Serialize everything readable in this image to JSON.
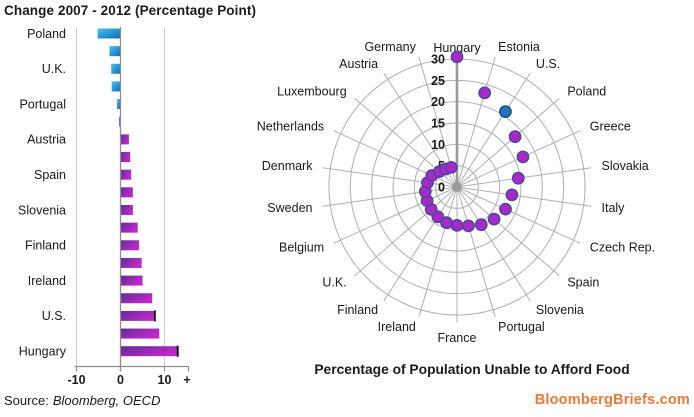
{
  "left_chart": {
    "title": "Change 2007 - 2012 (Percentage Point)",
    "source_label": "Source:",
    "source_value": "Bloomberg, OECD"
  },
  "radar_chart": {
    "title": "Percentage of Population Unable to Afford Food"
  },
  "branding": "BloombergBriefs.com",
  "colors": {
    "branding": "#EE7836",
    "bar_blue_gradient": [
      "#45C2EF",
      "#0C6CB8"
    ],
    "bar_purple_gradient": [
      "#5E2D96",
      "#C328CC"
    ],
    "grid": "#AFAFAF",
    "axis": "#8E8E8E",
    "point": "#A928C8",
    "point_stroke": "#5046A0",
    "highlight_point": "#1F78BE",
    "highlight_stroke": "#1A4F8C"
  },
  "chart_data": [
    {
      "type": "bar",
      "orientation": "horizontal",
      "title": "Change 2007 - 2012 (Percentage Point)",
      "categories": [
        "Poland",
        "",
        "U.K.",
        "",
        "Portugal",
        "",
        "Austria",
        "",
        "Spain",
        "",
        "Slovenia",
        "",
        "Finland",
        "",
        "Ireland",
        "",
        "U.S.",
        "",
        "Hungary"
      ],
      "values": [
        -5.2,
        -2.5,
        -2.1,
        -2.0,
        -0.8,
        -0.3,
        1.8,
        2.1,
        2.3,
        2.7,
        2.7,
        3.8,
        4.1,
        4.7,
        4.9,
        7.1,
        7.6,
        8.7,
        12.8
      ],
      "bar_colors": [
        "blue",
        "blue",
        "blue",
        "blue",
        "blue",
        "purple",
        "purple",
        "purple",
        "purple",
        "purple",
        "purple",
        "purple",
        "purple",
        "purple",
        "purple",
        "purple",
        "purple",
        "purple",
        "purple"
      ],
      "x_tick_labels": [
        "-10",
        "0",
        "10",
        "+"
      ],
      "x_tick_values": [
        -10,
        0,
        10
      ],
      "xlim": [
        -10,
        15.5
      ],
      "grid": true,
      "end_marker_indices": [
        16,
        18
      ]
    },
    {
      "type": "scatter",
      "projection": "polar",
      "title": "Percentage of Population Unable to Afford Food",
      "categories": [
        "Hungary",
        "Estonia",
        "U.S.",
        "Poland",
        "Greece",
        "Slovakia",
        "Italy",
        "Czech Rep.",
        "Spain",
        "Slovenia",
        "Portugal",
        "France",
        "Ireland",
        "Finland",
        "U.K.",
        "Belgium",
        "Sweden",
        "Denmark",
        "Netherlands",
        "Luxembourg",
        "Austria",
        "Germany"
      ],
      "values": [
        30.5,
        23,
        21,
        18,
        17,
        14.5,
        13,
        12.5,
        11.5,
        10.5,
        9.5,
        9,
        8.7,
        8.3,
        8,
        7.7,
        7.5,
        7,
        6.5,
        5.5,
        5,
        4.8
      ],
      "ring_tick_labels": [
        "0",
        "5",
        "10",
        "15",
        "20",
        "25",
        "30"
      ],
      "ring_ticks": [
        0,
        5,
        10,
        15,
        20,
        25,
        30
      ],
      "rlim": [
        0,
        30
      ],
      "highlight_category": "U.S.",
      "legend": false
    }
  ]
}
